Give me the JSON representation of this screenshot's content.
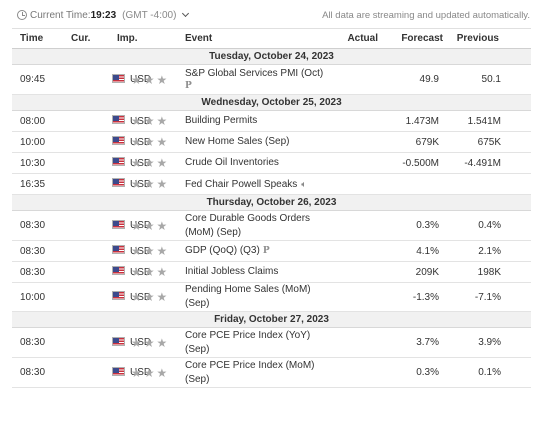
{
  "header": {
    "time_prefix": "Current Time:",
    "time_value": "19:23",
    "timezone": "(GMT -4:00)",
    "notice": "All data are streaming and updated automatically."
  },
  "columns": {
    "time": "Time",
    "currency": "Cur.",
    "importance": "Imp.",
    "event": "Event",
    "actual": "Actual",
    "forecast": "Forecast",
    "previous": "Previous"
  },
  "icons": {
    "clock": "clock-icon",
    "dropdown": "chevron-down-icon",
    "flag": "us-flag-icon",
    "star": "star-icon",
    "preliminary": "preliminary-icon",
    "speaker": "speaker-icon"
  },
  "colors": {
    "day_header_bg": "#f1f1f1",
    "star": "#a8a8a8",
    "flag_red": "#c8313e",
    "flag_blue": "#3c4a8c"
  },
  "days": [
    {
      "label": "Tuesday, October 24, 2023",
      "events": [
        {
          "time": "09:45",
          "currency": "USD",
          "importance": 3,
          "event": "S&P Global Services PMI (Oct)",
          "actual": "",
          "forecast": "49.9",
          "previous": "50.1",
          "marker": "P",
          "marker_block": true
        }
      ]
    },
    {
      "label": "Wednesday, October 25, 2023",
      "events": [
        {
          "time": "08:00",
          "currency": "USD",
          "importance": 3,
          "event": "Building Permits",
          "actual": "",
          "forecast": "1.473M",
          "previous": "1.541M"
        },
        {
          "time": "10:00",
          "currency": "USD",
          "importance": 3,
          "event": "New Home Sales (Sep)",
          "actual": "",
          "forecast": "679K",
          "previous": "675K"
        },
        {
          "time": "10:30",
          "currency": "USD",
          "importance": 3,
          "event": "Crude Oil Inventories",
          "actual": "",
          "forecast": "-0.500M",
          "previous": "-4.491M"
        },
        {
          "time": "16:35",
          "currency": "USD",
          "importance": 3,
          "event": "Fed Chair Powell Speaks",
          "actual": "",
          "forecast": "",
          "previous": "",
          "speaker": true
        }
      ]
    },
    {
      "label": "Thursday, October 26, 2023",
      "events": [
        {
          "time": "08:30",
          "currency": "USD",
          "importance": 3,
          "event": "Core Durable Goods Orders (MoM) (Sep)",
          "actual": "",
          "forecast": "0.3%",
          "previous": "0.4%"
        },
        {
          "time": "08:30",
          "currency": "USD",
          "importance": 3,
          "event": "GDP (QoQ) (Q3)",
          "actual": "",
          "forecast": "4.1%",
          "previous": "2.1%",
          "marker": "P"
        },
        {
          "time": "08:30",
          "currency": "USD",
          "importance": 3,
          "event": "Initial Jobless Claims",
          "actual": "",
          "forecast": "209K",
          "previous": "198K"
        },
        {
          "time": "10:00",
          "currency": "USD",
          "importance": 3,
          "event": "Pending Home Sales (MoM) (Sep)",
          "actual": "",
          "forecast": "-1.3%",
          "previous": "-7.1%"
        }
      ]
    },
    {
      "label": "Friday, October 27, 2023",
      "events": [
        {
          "time": "08:30",
          "currency": "USD",
          "importance": 3,
          "event": "Core PCE Price Index (YoY) (Sep)",
          "actual": "",
          "forecast": "3.7%",
          "previous": "3.9%"
        },
        {
          "time": "08:30",
          "currency": "USD",
          "importance": 3,
          "event": "Core PCE Price Index (MoM) (Sep)",
          "actual": "",
          "forecast": "0.3%",
          "previous": "0.1%"
        }
      ]
    }
  ]
}
